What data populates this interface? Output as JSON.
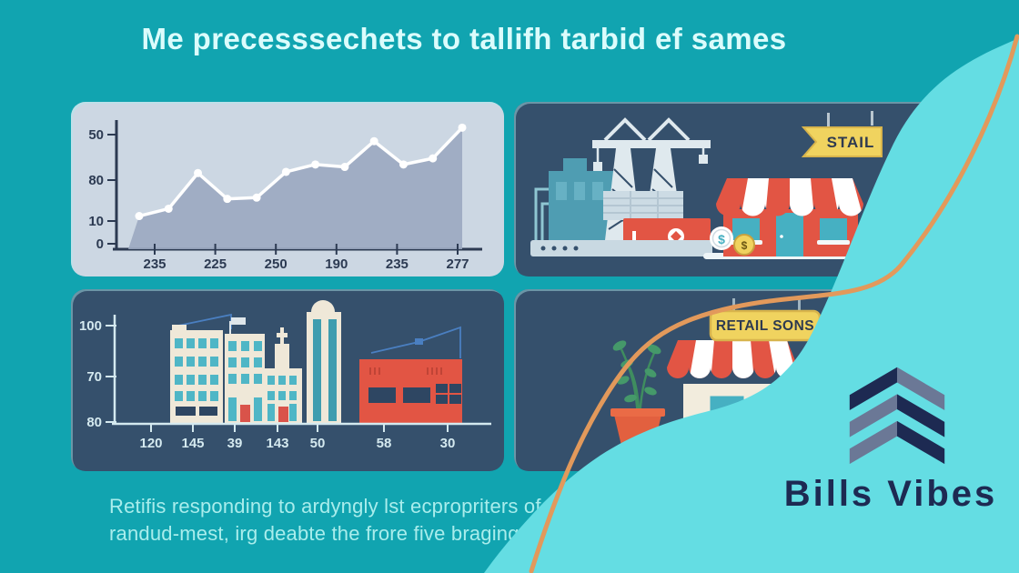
{
  "title": "Me precesssechets to tallifh tarbid ef sames",
  "caption": {
    "line1": "Retifis responding to ardyngly lst ecpropriters of t",
    "line2": "randud-mest, irg deabte the frore five braging, e"
  },
  "brand": {
    "name": "Bills Vibes"
  },
  "panels": {
    "top_right": {
      "sign_label": "STAIL",
      "coin_symbols": [
        "$",
        "$"
      ]
    },
    "bottom_right": {
      "sign_label": "RETAIL SONS"
    }
  },
  "colors": {
    "background": "#11a4b0",
    "panel_dark": "#35506c",
    "panel_light": "#ccd7e3",
    "blob_cyan": "#64dde3",
    "accent_line_orange": "#e2995b",
    "brand_navy": "#1d2a52",
    "logo_slate": "#6b7896",
    "illustration_red": "#e25544",
    "sign_yellow": "#f0d35f",
    "teal_object": "#4f9db2",
    "building_cream": "#efe8d8",
    "title_text": "#dbfcfc",
    "caption_text": "#a9edec"
  },
  "chart_data": [
    {
      "type": "area",
      "title": "",
      "x_ticks": [
        "235",
        "225",
        "250",
        "190",
        "235",
        "277"
      ],
      "y_ticks_top_to_bottom": [
        "50",
        "80",
        "10",
        "0"
      ],
      "values": [
        27,
        33,
        62,
        41,
        42,
        63,
        69,
        67,
        88,
        69,
        74,
        99
      ],
      "note": "decorative infographic area/line chart; values are relative heights 0-100 read from pixel positions",
      "line_color": "#ffffff",
      "area_color": "#9ba8c0",
      "axis_color": "#2c3a52",
      "grid": false,
      "legend": "none"
    },
    {
      "type": "bar",
      "title": "",
      "x_ticks": [
        "120",
        "145",
        "39",
        "143",
        "50",
        "58",
        "30"
      ],
      "y_ticks_top_to_bottom": [
        "100",
        "70",
        "80"
      ],
      "building_heights": [
        87,
        82,
        50,
        100,
        58
      ],
      "note": "bars drawn as city buildings; heights relative 0-100",
      "axis_color": "#d4e9ef",
      "grid": false,
      "legend": "none"
    }
  ]
}
